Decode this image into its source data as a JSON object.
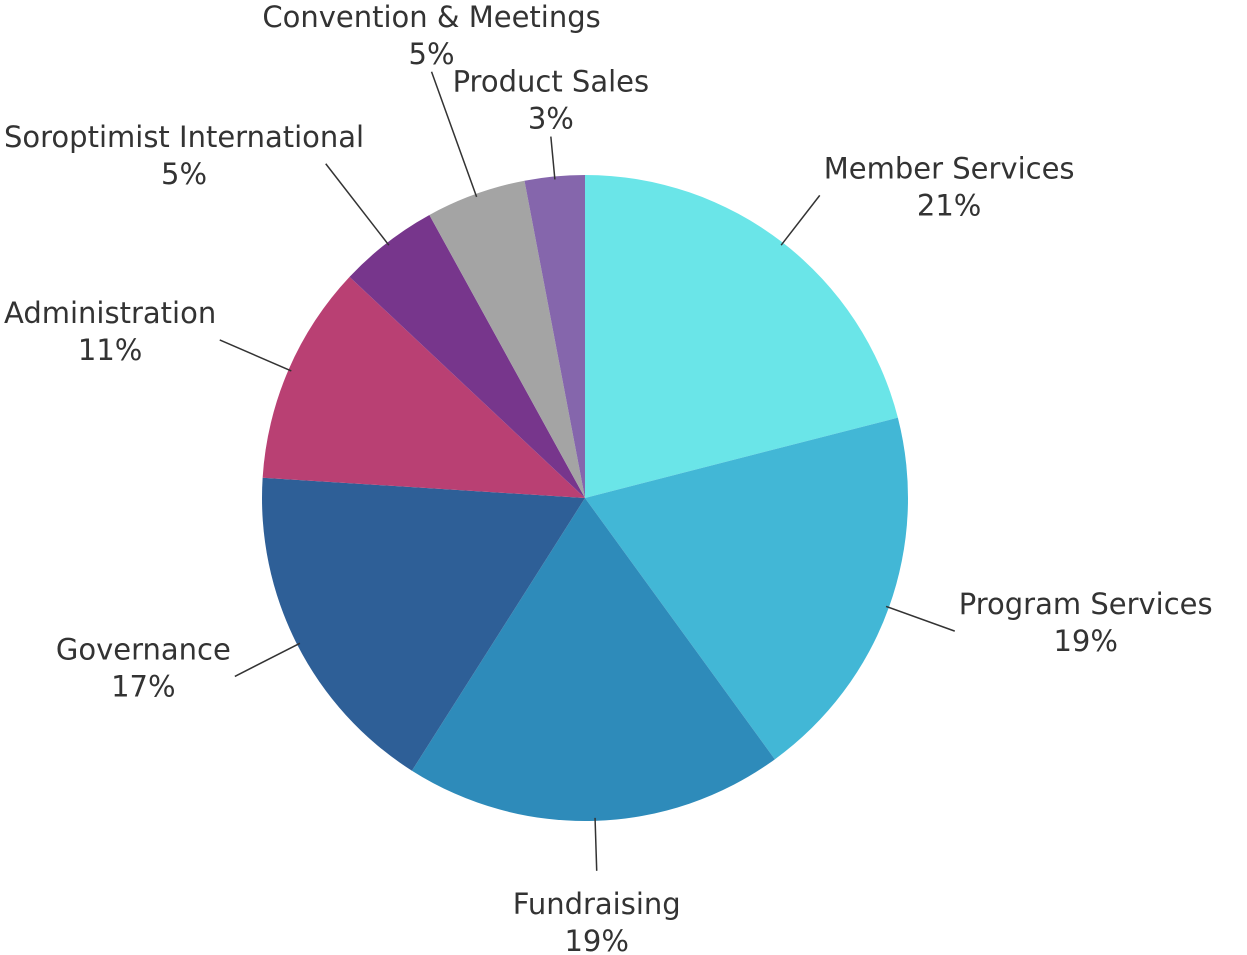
{
  "chart_data": {
    "type": "pie",
    "categories": [
      "Member Services",
      "Program Services",
      "Fundraising",
      "Governance",
      "Administration",
      "Soroptimist International",
      "Convention & Meetings",
      "Product Sales"
    ],
    "values": [
      21,
      19,
      19,
      17,
      11,
      5,
      5,
      3
    ],
    "value_labels": [
      "21%",
      "19%",
      "19%",
      "17%",
      "11%",
      "5%",
      "5%",
      "3%"
    ],
    "colors": [
      "#6ae5e8",
      "#42b7d6",
      "#2e8bba",
      "#2e5f97",
      "#b94073",
      "#77368c",
      "#a4a4a4",
      "#8566ac"
    ]
  }
}
